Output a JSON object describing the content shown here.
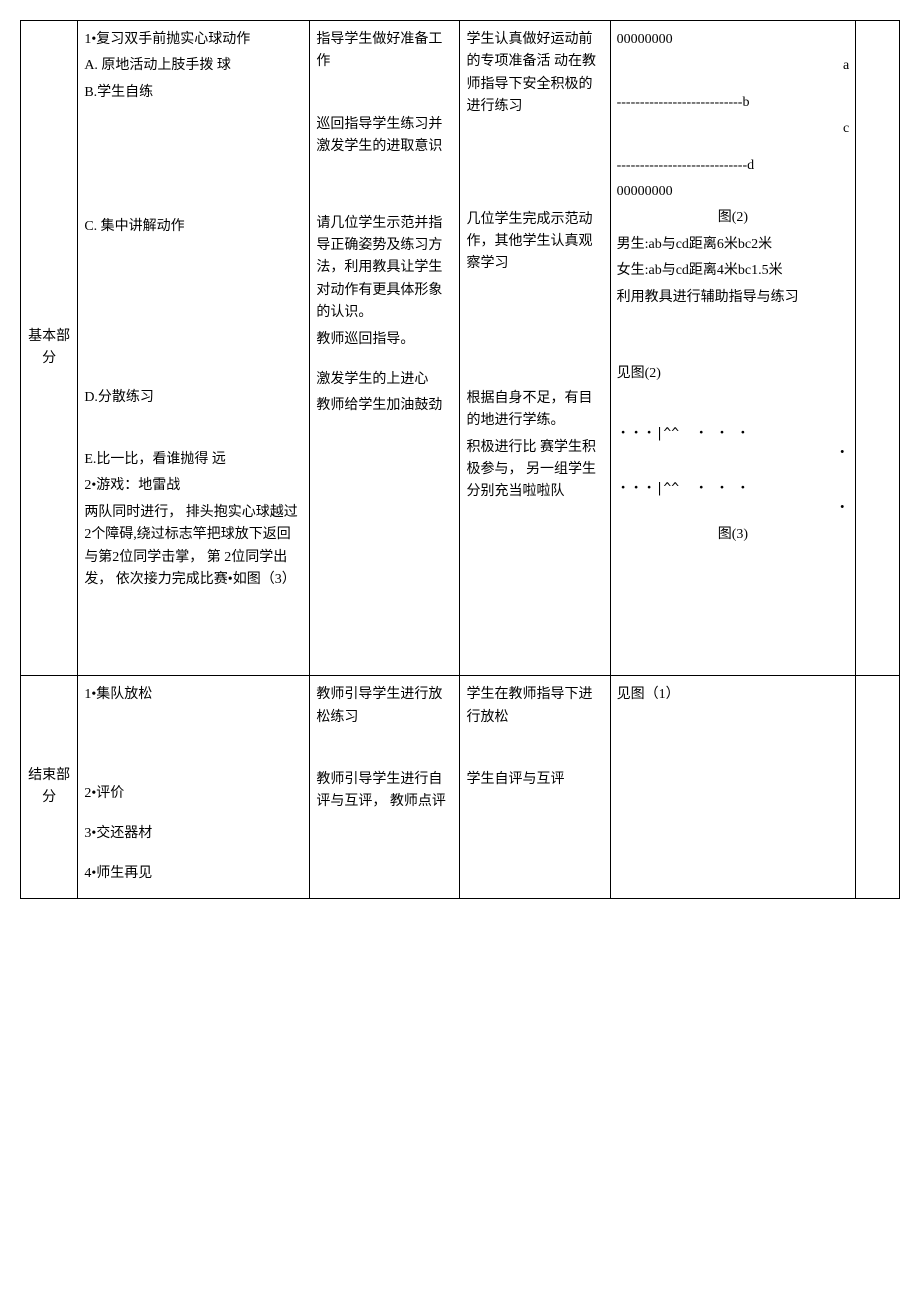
{
  "sections": {
    "basic": {
      "label": "基本部分",
      "content": {
        "item1_title": "1•复习双手前抛实心球动作",
        "item1_a": "A. 原地活动上肢手拨 球",
        "item1_b": "B.学生自练",
        "item1_c": "C.    集中讲解动作",
        "item1_d": "D.分散练习",
        "item1_e": "E.比一比，看谁抛得 远",
        "item2_title": "2•游戏：地雷战",
        "item2_desc": "两队同时进行， 排头抱实心球越过2个障碍,绕过标志竿把球放下返回与第2位同学击掌， 第 2位同学出发， 依次接力完成比赛•如图（3）"
      },
      "teacher": {
        "t1": "指导学生做好准备工作",
        "t2": "巡回指导学生练习并激发学生的进取意识",
        "t3": "请几位学生示范并指导正确姿势及练习方法，利用教具让学生对动作有更具体形象的认识。",
        "t4": "教师巡回指导。",
        "t5": "激发学生的上进心",
        "t6": "教师给学生加油鼓劲"
      },
      "student": {
        "s1": "学生认真做好运动前的专项准备活 动在教师指导下安全积极的进行练习",
        "s2": "几位学生完成示范动作，其他学生认真观察学习",
        "s3": "根据自身不足，有目的地进行学练。",
        "s4": "积极进行比 赛学生积极参与， 另一组学生分别充当啦啦队"
      },
      "layout": {
        "fig2_top": "00000000",
        "fig2_a": "a",
        "fig2_line_b": "---------------------------b",
        "fig2_c": "c",
        "fig2_line_d": "----------------------------d",
        "fig2_bottom": "00000000",
        "fig2_label": "图(2)",
        "fig2_note1": "男生:ab与cd距离6米bc2米",
        "fig2_note2": "女生:ab与cd距离4米bc1.5米",
        "fig2_note3": "利用教具进行辅助指导与练习",
        "see_fig2": "见图(2)",
        "fig3_line1": "・・・|^^  ・ ・ ・",
        "fig3_dot1": "・",
        "fig3_line2": "・・・|^^  ・ ・ ・",
        "fig3_dot2": "・",
        "fig3_label": "图(3)"
      }
    },
    "end": {
      "label": "结束部分",
      "content": {
        "e1": "1•集队放松",
        "e2": "2•评价",
        "e3": "3•交还器材",
        "e4": "4•师生再见"
      },
      "teacher": {
        "et1": "教师引导学生进行放松练习",
        "et2": "教师引导学生进行自评与互评， 教师点评"
      },
      "student": {
        "es1": "学生在教师指导下进行放松",
        "es2": "学生自评与互评"
      },
      "layout": {
        "see_fig1": "见图（1）"
      }
    }
  }
}
